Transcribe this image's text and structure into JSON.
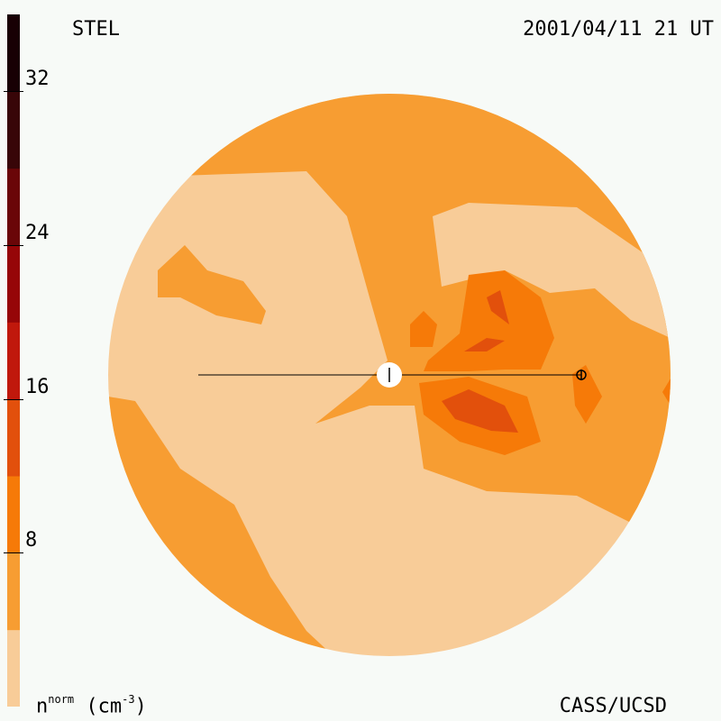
{
  "header": {
    "origin": "STEL",
    "timestamp": "2001/04/11 21 UT"
  },
  "footer": {
    "credit": "CASS/UCSD",
    "units_prefix": "n",
    "units_sup": "norm",
    "units_suffix": " (cm",
    "units_exp": "-3",
    "units_close": ")"
  },
  "colors": {
    "background": "#f7faf7",
    "levels": [
      "#f8cc98",
      "#f79d32",
      "#f67a08",
      "#e2500c",
      "#c0180c",
      "#960608",
      "#6a0608",
      "#380608",
      "#180004"
    ]
  },
  "chart_data": {
    "type": "heatmap",
    "title": "",
    "colorbar": {
      "min": 0,
      "max": 36,
      "step": 4,
      "ticks": [
        8,
        16,
        24,
        32
      ],
      "tick_labels": [
        "8",
        "16",
        "24",
        "32"
      ]
    },
    "markers": [
      {
        "name": "sun",
        "symbol": "circle"
      },
      {
        "name": "earth",
        "symbol": "⊕"
      }
    ]
  }
}
